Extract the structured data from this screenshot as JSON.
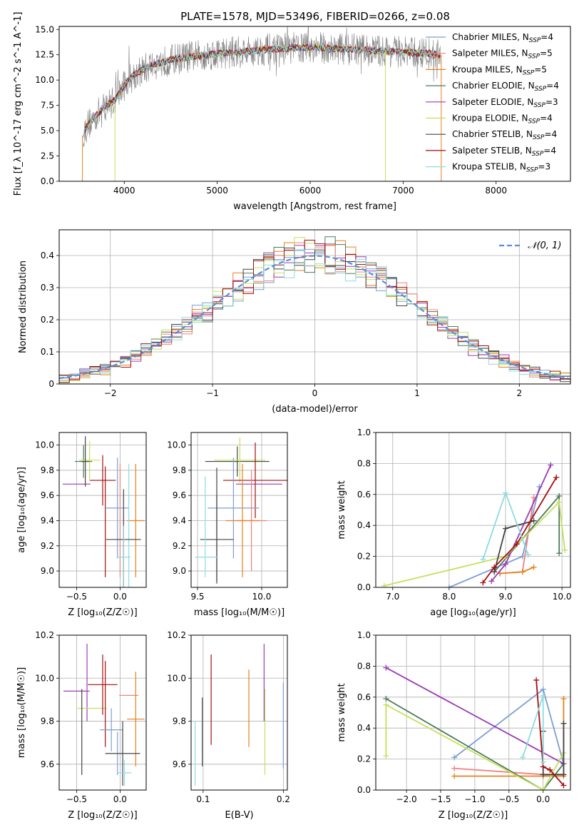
{
  "figure": {
    "title": "PLATE=1578, MJD=53496, FIBERID=0266, z=0.08"
  },
  "colors": {
    "chabrier_miles": "#7e9ed3",
    "salpeter_miles": "#f1807d",
    "kroupa_miles": "#e6811f",
    "chabrier_elodie": "#4b7a5a",
    "salpeter_elodie": "#9a3bb6",
    "kroupa_elodie": "#c4e05b",
    "chabrier_stelib": "#444444",
    "salpeter_stelib": "#a30e0e",
    "kroupa_stelib": "#8ddbe0",
    "normal_curve": "#5b8dd8"
  },
  "chart_data": [
    {
      "id": "spectrum",
      "type": "line",
      "xlabel": "wavelength [Angstrom, rest frame]",
      "ylabel": "Flux [f_λ 10^-17 erg cm^-2 s^-1 A^-1]",
      "xlim": [
        3300,
        8800
      ],
      "ylim": [
        0,
        15.3
      ],
      "xticks": [
        4000,
        5000,
        6000,
        7000,
        8000
      ],
      "yticks": [
        0.0,
        2.5,
        5.0,
        7.5,
        10.0,
        12.5,
        15.0
      ],
      "grid": false,
      "legend": "right",
      "data": {
        "x": [
          3550,
          3600,
          3700,
          3800,
          3900,
          4000,
          4100,
          4200,
          4300,
          4500,
          4700,
          4900,
          5100,
          5300,
          5500,
          5700,
          5900,
          6100,
          6300,
          6500,
          6700,
          6900,
          7100,
          7300,
          7400
        ],
        "y": [
          4.5,
          5.5,
          6.5,
          7.5,
          8.0,
          9.5,
          10.5,
          11.0,
          11.5,
          12.0,
          12.3,
          12.5,
          12.7,
          12.8,
          13.0,
          13.1,
          13.2,
          13.2,
          13.1,
          13.0,
          12.9,
          12.8,
          12.7,
          12.6,
          12.5
        ]
      },
      "series": [
        {
          "name": "Chabrier MILES",
          "nssp": "4"
        },
        {
          "name": "Salpeter MILES",
          "nssp": "5"
        },
        {
          "name": "Kroupa MILES",
          "nssp": "5"
        },
        {
          "name": "Chabrier ELODIE",
          "nssp": "4"
        },
        {
          "name": "Salpeter ELODIE",
          "nssp": "3"
        },
        {
          "name": "Kroupa ELODIE",
          "nssp": "4"
        },
        {
          "name": "Chabrier STELIB",
          "nssp": "4"
        },
        {
          "name": "Salpeter STELIB",
          "nssp": "4"
        },
        {
          "name": "Kroupa STELIB",
          "nssp": "3"
        }
      ]
    },
    {
      "id": "residuals",
      "type": "line",
      "xlabel": "(data-model)/error",
      "ylabel": "Normed distribution",
      "xlim": [
        -2.5,
        2.5
      ],
      "ylim": [
        0,
        0.48
      ],
      "xticks": [
        -2,
        -1,
        0,
        1,
        2
      ],
      "yticks": [
        0.0,
        0.1,
        0.2,
        0.3,
        0.4
      ],
      "grid": true,
      "legend": "top-right",
      "legend_label": "𝒩(0, 1)",
      "bin_width": 0.1
    },
    {
      "id": "age_vs_z",
      "type": "scatter",
      "xlabel": "Z [log₁₀(Z/Z☉)]",
      "ylabel": "age  [log₁₀(age/yr)]",
      "xlim": [
        -0.7,
        0.3
      ],
      "ylim": [
        8.87,
        10.1
      ],
      "xticks": [
        -0.5,
        0.0
      ],
      "yticks": [
        9.0,
        9.2,
        9.4,
        9.6,
        9.8,
        10.0
      ],
      "grid": true,
      "points": [
        {
          "x": -0.42,
          "xerr": 0.1,
          "y": 9.87,
          "yerr": 0.13,
          "series": "Chabrier ELODIE"
        },
        {
          "x": -0.5,
          "xerr": 0.16,
          "y": 9.69,
          "yerr": 0.0,
          "series": "Salpeter ELODIE"
        },
        {
          "x": -0.35,
          "xerr": 0.12,
          "y": 9.88,
          "yerr": 0.15,
          "series": "Kroupa ELODIE"
        },
        {
          "x": -0.4,
          "xerr": 0.05,
          "y": 9.87,
          "yerr": 0.2,
          "series": "Chabrier STELIB"
        },
        {
          "x": -0.2,
          "xerr": 0.15,
          "y": 9.72,
          "yerr": 0.2,
          "series": "Salpeter STELIB"
        },
        {
          "x": -0.17,
          "xerr": 0.0,
          "y": 9.39,
          "yerr": 0.44,
          "series": "Salpeter STELIB"
        },
        {
          "x": -0.03,
          "xerr": 0.13,
          "y": 9.5,
          "yerr": 0.4,
          "series": "Chabrier MILES"
        },
        {
          "x": 0.18,
          "xerr": 0.1,
          "y": 9.4,
          "yerr": 0.45,
          "series": "Kroupa MILES"
        },
        {
          "x": 0.0,
          "xerr": 0.0,
          "y": 9.4,
          "yerr": 0.45,
          "series": "Salpeter MILES"
        },
        {
          "x": 0.1,
          "xerr": 0.0,
          "y": 9.35,
          "yerr": 0.5,
          "series": "Kroupa STELIB"
        },
        {
          "x": 0.04,
          "xerr": 0.2,
          "y": 9.25,
          "yerr": 0.4,
          "series": "Chabrier STELIB"
        },
        {
          "x": 0.04,
          "xerr": 0.08,
          "y": 9.11,
          "yerr": 0.25,
          "series": "Kroupa STELIB"
        }
      ]
    },
    {
      "id": "age_vs_mass",
      "type": "scatter",
      "xlabel": "mass [log₁₀(M/M☉)]",
      "ylabel": "",
      "xlim": [
        9.45,
        10.2
      ],
      "ylim": [
        8.87,
        10.1
      ],
      "xticks": [
        9.5,
        10.0
      ],
      "yticks": [
        9.0,
        9.2,
        9.4,
        9.6,
        9.8,
        10.0
      ],
      "grid": true,
      "points": [
        {
          "x": 9.81,
          "xerr": 0.25,
          "y": 9.87,
          "yerr": 0.12,
          "series": "Chabrier STELIB"
        },
        {
          "x": 9.83,
          "xerr": 0.2,
          "y": 9.88,
          "yerr": 0.18,
          "series": "Kroupa ELODIE"
        },
        {
          "x": 9.98,
          "xerr": 0.18,
          "y": 9.69,
          "yerr": 0.0,
          "series": "Salpeter ELODIE"
        },
        {
          "x": 9.95,
          "xerr": 0.25,
          "y": 9.72,
          "yerr": 0.3,
          "series": "Salpeter STELIB"
        },
        {
          "x": 9.78,
          "xerr": 0.2,
          "y": 9.5,
          "yerr": 0.4,
          "series": "Chabrier MILES"
        },
        {
          "x": 9.92,
          "xerr": 0.12,
          "y": 9.4,
          "yerr": 0.4,
          "series": "Salpeter MILES"
        },
        {
          "x": 9.85,
          "xerr": 0.13,
          "y": 9.4,
          "yerr": 0.45,
          "series": "Kroupa MILES"
        },
        {
          "x": 9.65,
          "xerr": 0.0,
          "y": 9.37,
          "yerr": 0.45,
          "series": "Chabrier STELIB"
        },
        {
          "x": 9.65,
          "xerr": 0.13,
          "y": 9.25,
          "yerr": 0.35,
          "series": "Chabrier STELIB"
        },
        {
          "x": 9.56,
          "xerr": 0.0,
          "y": 9.35,
          "yerr": 0.4,
          "series": "Kroupa STELIB"
        },
        {
          "x": 9.57,
          "xerr": 0.09,
          "y": 9.11,
          "yerr": 0.0,
          "series": "Kroupa STELIB"
        }
      ]
    },
    {
      "id": "weight_vs_age",
      "type": "line",
      "xlabel": "age  [log₁₀(age/yr)]",
      "ylabel": "mass weight",
      "xlim": [
        6.7,
        10.15
      ],
      "ylim": [
        0,
        1.0
      ],
      "xticks": [
        7,
        8,
        9,
        10
      ],
      "yticks": [
        0.0,
        0.2,
        0.4,
        0.6,
        0.8,
        1.0
      ],
      "grid": true,
      "series": [
        {
          "name": "Chabrier MILES",
          "x": [
            8.0,
            9.3,
            9.6
          ],
          "y": [
            0.0,
            0.2,
            0.65
          ]
        },
        {
          "name": "Salpeter MILES",
          "x": [
            8.9,
            9.3,
            9.5
          ],
          "y": [
            0.09,
            0.1,
            0.58
          ]
        },
        {
          "name": "Kroupa MILES",
          "x": [
            8.9,
            9.3,
            9.5
          ],
          "y": [
            0.09,
            0.1,
            0.13
          ]
        },
        {
          "name": "Chabrier ELODIE",
          "x": [
            8.8,
            9.95,
            9.95
          ],
          "y": [
            0.1,
            0.59,
            0.22
          ]
        },
        {
          "name": "Salpeter ELODIE",
          "x": [
            8.75,
            9.0,
            9.8
          ],
          "y": [
            0.04,
            0.15,
            0.79
          ]
        },
        {
          "name": "Kroupa ELODIE",
          "x": [
            6.85,
            9.0,
            9.95,
            10.05
          ],
          "y": [
            0.01,
            0.2,
            0.55,
            0.24
          ]
        },
        {
          "name": "Chabrier STELIB",
          "x": [
            8.8,
            9.0,
            9.5
          ],
          "y": [
            0.1,
            0.38,
            0.43
          ]
        },
        {
          "name": "Salpeter STELIB",
          "x": [
            8.6,
            8.8,
            9.2,
            9.9
          ],
          "y": [
            0.03,
            0.13,
            0.28,
            0.71
          ]
        },
        {
          "name": "Kroupa STELIB",
          "x": [
            8.6,
            9.0,
            9.4
          ],
          "y": [
            0.18,
            0.61,
            0.21
          ]
        }
      ]
    },
    {
      "id": "mass_vs_z",
      "type": "scatter",
      "xlabel": "Z [log₁₀(Z/Z☉)]",
      "ylabel": "mass [log₁₀(M/M☉)]",
      "xlim": [
        -0.7,
        0.3
      ],
      "ylim": [
        9.48,
        10.2
      ],
      "xticks": [
        -0.5,
        0.0
      ],
      "yticks": [
        9.6,
        9.8,
        10.0,
        10.2
      ],
      "grid": true,
      "points": [
        {
          "x": -0.5,
          "xerr": 0.15,
          "y": 9.94,
          "yerr": 0.0,
          "series": "Salpeter ELODIE"
        },
        {
          "x": -0.38,
          "xerr": 0.0,
          "y": 9.98,
          "yerr": 0.18,
          "series": "Salpeter ELODIE"
        },
        {
          "x": -0.32,
          "xerr": 0.17,
          "y": 9.86,
          "yerr": 0.0,
          "series": "Kroupa ELODIE"
        },
        {
          "x": -0.44,
          "xerr": 0.0,
          "y": 9.75,
          "yerr": 0.2,
          "series": "Chabrier STELIB"
        },
        {
          "x": -0.2,
          "xerr": 0.17,
          "y": 9.97,
          "yerr": 0.14,
          "series": "Salpeter STELIB"
        },
        {
          "x": -0.17,
          "xerr": 0.0,
          "y": 9.88,
          "yerr": 0.2,
          "series": "Salpeter STELIB"
        },
        {
          "x": -0.1,
          "xerr": 0.13,
          "y": 9.76,
          "yerr": 0.1,
          "series": "Chabrier MILES"
        },
        {
          "x": 0.1,
          "xerr": 0.11,
          "y": 9.92,
          "yerr": 0.0,
          "series": "Salpeter MILES"
        },
        {
          "x": 0.18,
          "xerr": 0.1,
          "y": 9.81,
          "yerr": 0.22,
          "series": "Kroupa MILES"
        },
        {
          "x": -0.03,
          "xerr": 0.0,
          "y": 9.65,
          "yerr": 0.1,
          "series": "Chabrier MILES"
        },
        {
          "x": 0.03,
          "xerr": 0.2,
          "y": 9.65,
          "yerr": 0.15,
          "series": "Chabrier STELIB"
        },
        {
          "x": 0.05,
          "xerr": 0.08,
          "y": 9.56,
          "yerr": 0.06,
          "series": "Kroupa STELIB"
        }
      ]
    },
    {
      "id": "mass_vs_ebv",
      "type": "scatter",
      "xlabel": "E(B-V)",
      "ylabel": "",
      "xlim": [
        0.085,
        0.205
      ],
      "ylim": [
        9.48,
        10.2
      ],
      "xticks": [
        0.1,
        0.2
      ],
      "yticks": [
        9.6,
        9.8,
        10.0,
        10.2
      ],
      "grid": true,
      "points": [
        {
          "x": 0.09,
          "xerr": 0.0,
          "y": 9.65,
          "yerr": 0.15,
          "series": "Kroupa STELIB"
        },
        {
          "x": 0.099,
          "xerr": 0.0,
          "y": 9.75,
          "yerr": 0.16,
          "series": "Chabrier STELIB"
        },
        {
          "x": 0.11,
          "xerr": 0.0,
          "y": 9.9,
          "yerr": 0.21,
          "series": "Salpeter STELIB"
        },
        {
          "x": 0.157,
          "xerr": 0.0,
          "y": 9.86,
          "yerr": 0.18,
          "series": "Kroupa MILES"
        },
        {
          "x": 0.176,
          "xerr": 0.0,
          "y": 9.98,
          "yerr": 0.18,
          "series": "Salpeter ELODIE"
        },
        {
          "x": 0.177,
          "xerr": 0.0,
          "y": 9.75,
          "yerr": 0.2,
          "series": "Kroupa ELODIE"
        },
        {
          "x": 0.2,
          "xerr": 0.0,
          "y": 9.78,
          "yerr": 0.2,
          "series": "Chabrier MILES"
        }
      ]
    },
    {
      "id": "weight_vs_z",
      "type": "line",
      "xlabel": "Z [log₁₀(Z/Z☉)]",
      "ylabel": "mass weight",
      "xlim": [
        -2.45,
        0.4
      ],
      "ylim": [
        0,
        1.0
      ],
      "xticks": [
        -2.0,
        -1.5,
        -1.0,
        -0.5,
        0.0
      ],
      "yticks": [
        0.0,
        0.2,
        0.4,
        0.6,
        0.8,
        1.0
      ],
      "grid": true,
      "series": [
        {
          "name": "Chabrier MILES",
          "x": [
            -1.3,
            0.0,
            0.3
          ],
          "y": [
            0.21,
            0.65,
            0.17
          ]
        },
        {
          "name": "Salpeter MILES",
          "x": [
            -1.3,
            0.0,
            0.3
          ],
          "y": [
            0.14,
            0.1,
            0.1
          ]
        },
        {
          "name": "Kroupa MILES",
          "x": [
            -1.3,
            0.0,
            0.3,
            0.3
          ],
          "y": [
            0.09,
            0.09,
            0.09,
            0.59
          ]
        },
        {
          "name": "Chabrier ELODIE",
          "x": [
            -2.3,
            0.0,
            0.3
          ],
          "y": [
            0.59,
            0.0,
            0.17
          ]
        },
        {
          "name": "Salpeter ELODIE",
          "x": [
            -2.3,
            0.3
          ],
          "y": [
            0.79,
            0.17
          ]
        },
        {
          "name": "Kroupa ELODIE",
          "x": [
            -2.3,
            -2.3,
            0.0,
            0.3
          ],
          "y": [
            0.22,
            0.55,
            0.0,
            0.24
          ]
        },
        {
          "name": "Chabrier STELIB",
          "x": [
            0.0,
            0.0,
            0.3,
            0.3
          ],
          "y": [
            0.38,
            0.1,
            0.1,
            0.43
          ]
        },
        {
          "name": "Salpeter STELIB",
          "x": [
            -0.1,
            0.0,
            0.1,
            0.3
          ],
          "y": [
            0.71,
            0.15,
            0.13,
            0.03
          ]
        },
        {
          "name": "Kroupa STELIB",
          "x": [
            -0.3,
            0.0,
            0.0
          ],
          "y": [
            0.21,
            0.61,
            0.18
          ]
        }
      ]
    }
  ]
}
